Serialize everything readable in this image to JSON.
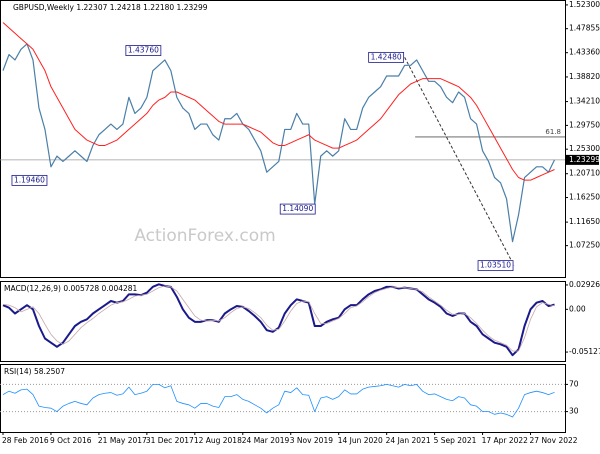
{
  "chart_data": [
    {
      "type": "line",
      "title": "GBPUSD,Weekly  1.22307 1.24218 1.22180 1.23299",
      "watermark": "ActionForex.com",
      "x": [
        0,
        4,
        8,
        12,
        16,
        20,
        24,
        28,
        32,
        36,
        40,
        44,
        48,
        52,
        56,
        60,
        64,
        68,
        72,
        76,
        80,
        84,
        88,
        92,
        96,
        100,
        104,
        108,
        112,
        116,
        120,
        124,
        128,
        132,
        136,
        140,
        144,
        148,
        152,
        156,
        160,
        164,
        168,
        172,
        176,
        180,
        184,
        188,
        192,
        196,
        200,
        204,
        208,
        212,
        216,
        220,
        224,
        228,
        232,
        236,
        240,
        244,
        248,
        252,
        256,
        260,
        264,
        268,
        272,
        276,
        280,
        284,
        288,
        292,
        296,
        300,
        304,
        308,
        312,
        316,
        320,
        324,
        328,
        332,
        336,
        340,
        344,
        348,
        352,
        356,
        360,
        364,
        368
      ],
      "xlim": [
        -2,
        375
      ],
      "xticks": [
        {
          "value": 0,
          "label": "28 Feb 2016"
        },
        {
          "value": 32,
          "label": "9 Oct 2016"
        },
        {
          "value": 64,
          "label": "21 May 2017"
        },
        {
          "value": 96,
          "label": "31 Dec 2017"
        },
        {
          "value": 128,
          "label": "12 Aug 2018"
        },
        {
          "value": 160,
          "label": "24 Mar 2019"
        },
        {
          "value": 192,
          "label": "3 Nov 2019"
        },
        {
          "value": 224,
          "label": "14 Jun 2020"
        },
        {
          "value": 256,
          "label": "24 Jan 2021"
        },
        {
          "value": 288,
          "label": "5 Sep 2021"
        },
        {
          "value": 320,
          "label": "17 Apr 2022"
        },
        {
          "value": 352,
          "label": "27 Nov 2022"
        }
      ],
      "ylim": [
        1.0138,
        1.5322
      ],
      "yticks": [
        {
          "value": 1.523,
          "label": "1.52300"
        },
        1.47855,
        {
          "value": 1.4336,
          "label": "1.43360"
        },
        {
          "value": 1.3882,
          "label": "1.38820"
        },
        {
          "value": 1.3421,
          "label": "1.34210"
        },
        {
          "value": 1.2975,
          "label": "1.29750"
        },
        {
          "value": 1.253,
          "label": "1.25300"
        },
        {
          "value": 1.2071,
          "label": "1.20710"
        },
        {
          "value": 1.1625,
          "label": "1.16250"
        },
        {
          "value": 1.1165,
          "label": "1.11650"
        },
        {
          "value": 1.0725,
          "label": "1.07250"
        }
      ],
      "series": [
        {
          "color": "#4a7fa8",
          "width": 1.2,
          "values": [
            1.4,
            1.43,
            1.42,
            1.44,
            1.45,
            1.42,
            1.33,
            1.29,
            1.22,
            1.24,
            1.23,
            1.24,
            1.25,
            1.24,
            1.23,
            1.26,
            1.28,
            1.29,
            1.3,
            1.29,
            1.3,
            1.35,
            1.32,
            1.33,
            1.35,
            1.4,
            1.41,
            1.42,
            1.4,
            1.35,
            1.33,
            1.32,
            1.29,
            1.3,
            1.3,
            1.28,
            1.27,
            1.31,
            1.31,
            1.32,
            1.3,
            1.29,
            1.27,
            1.25,
            1.21,
            1.22,
            1.23,
            1.29,
            1.29,
            1.32,
            1.3,
            1.3,
            1.15,
            1.24,
            1.25,
            1.24,
            1.25,
            1.31,
            1.29,
            1.29,
            1.33,
            1.35,
            1.36,
            1.37,
            1.39,
            1.39,
            1.39,
            1.41,
            1.41,
            1.42,
            1.4,
            1.38,
            1.38,
            1.37,
            1.35,
            1.34,
            1.36,
            1.35,
            1.31,
            1.3,
            1.25,
            1.23,
            1.2,
            1.19,
            1.16,
            1.08,
            1.13,
            1.2,
            1.21,
            1.22,
            1.22,
            1.21,
            1.23299
          ]
        },
        {
          "color": "#ff2020",
          "width": 1,
          "values": [
            1.49,
            1.48,
            1.47,
            1.46,
            1.45,
            1.44,
            1.42,
            1.4,
            1.37,
            1.35,
            1.33,
            1.31,
            1.29,
            1.28,
            1.27,
            1.265,
            1.26,
            1.26,
            1.265,
            1.27,
            1.28,
            1.29,
            1.3,
            1.31,
            1.32,
            1.335,
            1.345,
            1.35,
            1.36,
            1.36,
            1.355,
            1.35,
            1.345,
            1.335,
            1.325,
            1.315,
            1.305,
            1.3,
            1.3,
            1.3,
            1.3,
            1.295,
            1.29,
            1.285,
            1.275,
            1.265,
            1.26,
            1.26,
            1.265,
            1.27,
            1.275,
            1.28,
            1.27,
            1.265,
            1.26,
            1.255,
            1.255,
            1.26,
            1.265,
            1.27,
            1.28,
            1.29,
            1.3,
            1.31,
            1.325,
            1.34,
            1.355,
            1.365,
            1.375,
            1.38,
            1.385,
            1.385,
            1.385,
            1.385,
            1.38,
            1.375,
            1.37,
            1.36,
            1.35,
            1.335,
            1.315,
            1.295,
            1.275,
            1.255,
            1.235,
            1.215,
            1.2,
            1.195,
            1.195,
            1.2,
            1.205,
            1.21,
            1.215
          ]
        }
      ],
      "last_price": 1.23299,
      "annotations": [
        {
          "value": 1.1946,
          "label": "1.19460",
          "x": 30
        },
        {
          "value": 1.4376,
          "label": "1.43760",
          "x": 106
        },
        {
          "value": 1.1409,
          "label": "1.14090",
          "x": 209
        },
        {
          "value": 1.4248,
          "label": "1.42480",
          "x": 268
        },
        {
          "value": 1.0351,
          "label": "1.03510",
          "x": 341
        }
      ],
      "fib_level": {
        "label": "61.8",
        "value": 1.2759,
        "x": 275
      },
      "trendline": {
        "x": [
          268,
          341
        ],
        "y": [
          1.4248,
          1.0351
        ]
      }
    },
    {
      "type": "line",
      "title": "MACD(12,26,9) 0.005728 0.004281",
      "ylim": [
        -0.062,
        0.034
      ],
      "yticks": [
        0.029261,
        {
          "value": 0,
          "label": "0.00"
        },
        -0.051279
      ],
      "series": [
        {
          "color": "#1a1a8c",
          "width": 2,
          "values": [
            0.005,
            0.002,
            -0.005,
            0,
            0.005,
            0,
            -0.02,
            -0.035,
            -0.04,
            -0.045,
            -0.04,
            -0.03,
            -0.02,
            -0.015,
            -0.012,
            -0.005,
            0,
            0.005,
            0.01,
            0.008,
            0.01,
            0.018,
            0.018,
            0.017,
            0.02,
            0.027,
            0.03,
            0.028,
            0.027,
            0.015,
            0,
            -0.01,
            -0.015,
            -0.015,
            -0.013,
            -0.013,
            -0.015,
            -0.005,
            0,
            0.004,
            0.003,
            -0.002,
            -0.008,
            -0.015,
            -0.025,
            -0.027,
            -0.022,
            -0.005,
            0.005,
            0.012,
            0.01,
            0.008,
            -0.02,
            -0.02,
            -0.015,
            -0.012,
            -0.01,
            0,
            0.005,
            0.005,
            0.012,
            0.018,
            0.022,
            0.024,
            0.027,
            0.027,
            0.025,
            0.026,
            0.025,
            0.024,
            0.018,
            0.012,
            0.008,
            0.003,
            -0.005,
            -0.008,
            -0.005,
            -0.005,
            -0.015,
            -0.02,
            -0.03,
            -0.035,
            -0.04,
            -0.042,
            -0.045,
            -0.055,
            -0.048,
            -0.02,
            0,
            0.008,
            0.01,
            0.004,
            0.005728
          ]
        },
        {
          "color": "#c8a8a8",
          "width": 0.8,
          "values": [
            0.006,
            0.005,
            0.002,
            -0.003,
            0,
            0.003,
            -0.005,
            -0.018,
            -0.03,
            -0.038,
            -0.042,
            -0.038,
            -0.03,
            -0.022,
            -0.016,
            -0.011,
            -0.005,
            0,
            0.005,
            0.008,
            0.009,
            0.012,
            0.016,
            0.017,
            0.018,
            0.022,
            0.026,
            0.028,
            0.027,
            0.022,
            0.012,
            0.002,
            -0.008,
            -0.013,
            -0.014,
            -0.013,
            -0.014,
            -0.01,
            -0.004,
            0.001,
            0.003,
            0.001,
            -0.004,
            -0.01,
            -0.019,
            -0.025,
            -0.024,
            -0.014,
            -0.002,
            0.007,
            0.01,
            0.009,
            -0.005,
            -0.017,
            -0.017,
            -0.014,
            -0.011,
            -0.005,
            0.002,
            0.004,
            0.009,
            0.015,
            0.02,
            0.023,
            0.025,
            0.027,
            0.026,
            0.026,
            0.025,
            0.024,
            0.021,
            0.015,
            0.01,
            0.005,
            -0.001,
            -0.006,
            -0.006,
            -0.005,
            -0.01,
            -0.017,
            -0.025,
            -0.032,
            -0.037,
            -0.04,
            -0.043,
            -0.05,
            -0.05,
            -0.034,
            -0.012,
            0.003,
            0.008,
            0.006,
            0.004281
          ]
        }
      ]
    },
    {
      "type": "line",
      "title": "RSI(14) 58.2507",
      "ylim": [
        0,
        100
      ],
      "yticks": [
        70,
        30
      ],
      "grid": true,
      "series": [
        {
          "color": "#1e90ff",
          "width": 0.8,
          "values": [
            55,
            60,
            57,
            62,
            63,
            55,
            38,
            36,
            35,
            30,
            38,
            42,
            45,
            42,
            40,
            50,
            55,
            57,
            58,
            54,
            56,
            66,
            55,
            57,
            60,
            70,
            70,
            65,
            68,
            45,
            42,
            40,
            35,
            42,
            42,
            38,
            36,
            52,
            52,
            55,
            48,
            45,
            40,
            35,
            28,
            35,
            40,
            60,
            58,
            65,
            55,
            54,
            30,
            50,
            52,
            48,
            52,
            62,
            56,
            56,
            63,
            66,
            67,
            68,
            70,
            68,
            66,
            70,
            68,
            70,
            60,
            55,
            56,
            52,
            48,
            46,
            52,
            50,
            40,
            38,
            30,
            30,
            26,
            28,
            26,
            22,
            35,
            55,
            58,
            60,
            58,
            55,
            58.2507
          ]
        }
      ]
    }
  ]
}
